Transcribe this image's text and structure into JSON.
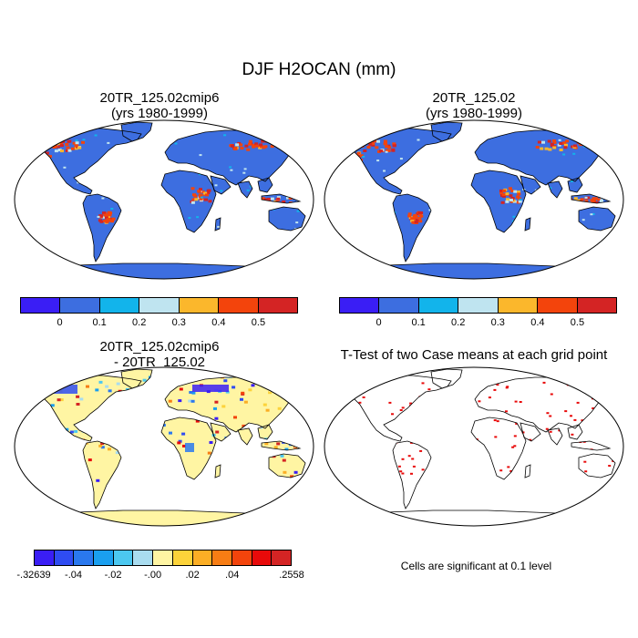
{
  "figure": {
    "title": "DJF H2OCAN (mm)"
  },
  "panels": [
    {
      "id": "case1",
      "title_line1": "20TR_125.02cmip6",
      "title_line2": "(yrs 1980-1999)"
    },
    {
      "id": "case2",
      "title_line1": "20TR_125.02",
      "title_line2": "(yrs 1980-1999)"
    },
    {
      "id": "diff",
      "title_line1": "20TR_125.02cmip6",
      "title_line2": "- 20TR_125.02"
    },
    {
      "id": "ttest",
      "title_line1": "T-Test of two Case means at each grid point"
    }
  ],
  "colorbar_abs": {
    "colors": [
      "#3a1ef5",
      "#3d6ee0",
      "#12b4eb",
      "#bfe4f0",
      "#fbb72c",
      "#f3440c",
      "#d42424"
    ],
    "labels": [
      "0",
      "0.1",
      "0.2",
      "0.3",
      "0.4",
      "0.5"
    ]
  },
  "colorbar_diff": {
    "colors": [
      "#3a1ef5",
      "#2f4cf2",
      "#2a78ee",
      "#1a9fef",
      "#4cc8f0",
      "#a9dcef",
      "#fff5a3",
      "#fcd33a",
      "#fbae25",
      "#f77d14",
      "#f3440c",
      "#e80a0a",
      "#d42424"
    ],
    "labels": [
      "-.32639",
      "-.04",
      "-.02",
      "-.00",
      ".02",
      ".04",
      ".2558"
    ]
  },
  "significance_note": "Cells are significant at 0.1 level",
  "map_colors": {
    "ocean": "#ffffff",
    "land_base_abs": "#3d6ee0",
    "land_base_diff": "#fff5a3",
    "significant": "#e80a0a"
  }
}
